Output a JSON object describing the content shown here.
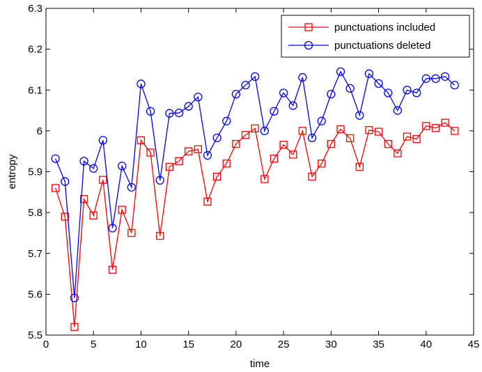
{
  "chart_data": {
    "type": "line",
    "xlabel": "time",
    "ylabel": "entropy",
    "xlim": [
      0,
      45
    ],
    "ylim": [
      5.5,
      6.3
    ],
    "xticks": [
      0,
      5,
      10,
      15,
      20,
      25,
      30,
      35,
      40,
      45
    ],
    "yticks": [
      5.5,
      5.6,
      5.7,
      5.8,
      5.9,
      6,
      6.1,
      6.2,
      6.3
    ],
    "grid": false,
    "legend_position": "top-right",
    "x": [
      1,
      2,
      3,
      4,
      5,
      6,
      7,
      8,
      9,
      10,
      11,
      12,
      13,
      14,
      15,
      16,
      17,
      18,
      19,
      20,
      21,
      22,
      23,
      24,
      25,
      26,
      27,
      28,
      29,
      30,
      31,
      32,
      33,
      34,
      35,
      36,
      37,
      38,
      39,
      40,
      41,
      42,
      43
    ],
    "series": [
      {
        "name": "punctuations included",
        "color": "#ff0000",
        "marker": "square",
        "values": [
          5.86,
          5.79,
          5.52,
          5.833,
          5.793,
          5.88,
          5.66,
          5.807,
          5.75,
          5.977,
          5.947,
          5.743,
          5.912,
          5.926,
          5.95,
          5.955,
          5.827,
          5.888,
          5.92,
          5.968,
          5.99,
          6.006,
          5.882,
          5.932,
          5.966,
          5.942,
          6.0,
          5.888,
          5.92,
          5.968,
          6.004,
          5.982,
          5.912,
          6.002,
          5.998,
          5.968,
          5.945,
          5.986,
          5.98,
          6.012,
          6.007,
          6.02,
          6.0
        ]
      },
      {
        "name": "punctuations deleted",
        "color": "#0000ff",
        "marker": "circle",
        "values": [
          5.932,
          5.876,
          5.591,
          5.926,
          5.908,
          5.977,
          5.762,
          5.914,
          5.862,
          6.115,
          6.048,
          5.879,
          6.043,
          6.044,
          6.06,
          6.083,
          5.94,
          5.983,
          6.024,
          6.09,
          6.112,
          6.133,
          6.0,
          6.048,
          6.093,
          6.062,
          6.131,
          5.983,
          6.024,
          6.09,
          6.145,
          6.104,
          6.038,
          6.14,
          6.116,
          6.093,
          6.05,
          6.1,
          6.093,
          6.128,
          6.128,
          6.133,
          6.112
        ]
      }
    ]
  }
}
